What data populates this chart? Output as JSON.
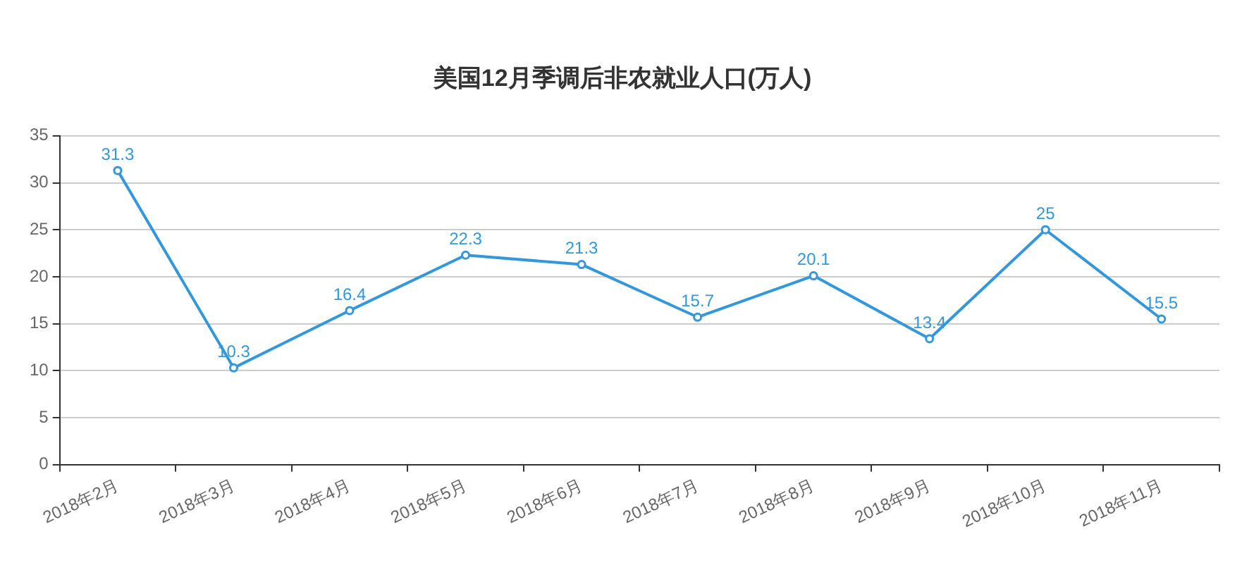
{
  "chart_data": {
    "type": "line",
    "title": "美国12月季调后非农就业人口(万人)",
    "categories": [
      "2018年2月",
      "2018年3月",
      "2018年4月",
      "2018年5月",
      "2018年6月",
      "2018年7月",
      "2018年8月",
      "2018年9月",
      "2018年10月",
      "2018年11月"
    ],
    "series": [
      {
        "color": "#3398db",
        "values": [
          31.3,
          10.3,
          16.4,
          22.3,
          21.3,
          15.7,
          20.1,
          13.4,
          25,
          15.5
        ]
      }
    ],
    "ylim": [
      0,
      35
    ],
    "yticks": [
      0,
      5,
      10,
      15,
      20,
      25,
      30,
      35
    ],
    "grid": "y",
    "legend": false,
    "marker": "circle",
    "line_style": "solid",
    "data_labels": true
  }
}
